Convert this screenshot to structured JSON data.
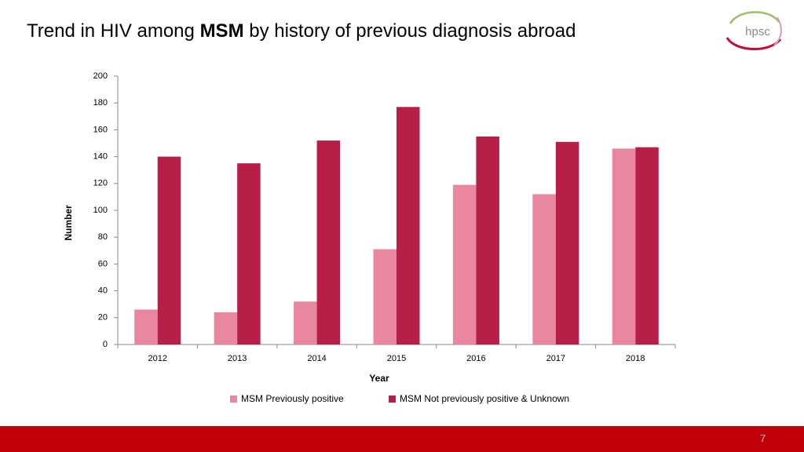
{
  "slide": {
    "title": [
      "Trend in HIV among",
      "MSM",
      "by history of previous diagnosis abroad"
    ],
    "logo": "hpsc",
    "page_number": 7
  },
  "chart_data": {
    "type": "bar",
    "x_label": "Year",
    "y_label": "Number",
    "categories": [
      "2012",
      "2013",
      "2014",
      "2015",
      "2016",
      "2017",
      "2018"
    ],
    "series": [
      {
        "name": "MSM Previously positive",
        "color": "#e8879f",
        "values": [
          26,
          24,
          32,
          71,
          119,
          112,
          146
        ]
      },
      {
        "name": "MSM Not previously positive & Unknown",
        "color": "#b81f46",
        "values": [
          140,
          135,
          152,
          177,
          155,
          151,
          147
        ]
      }
    ],
    "ylim": [
      0,
      200
    ],
    "yticks": [
      0,
      20,
      40,
      60,
      80,
      100,
      120,
      140,
      160,
      180,
      200
    ],
    "grid": false,
    "legend": "bottom"
  }
}
